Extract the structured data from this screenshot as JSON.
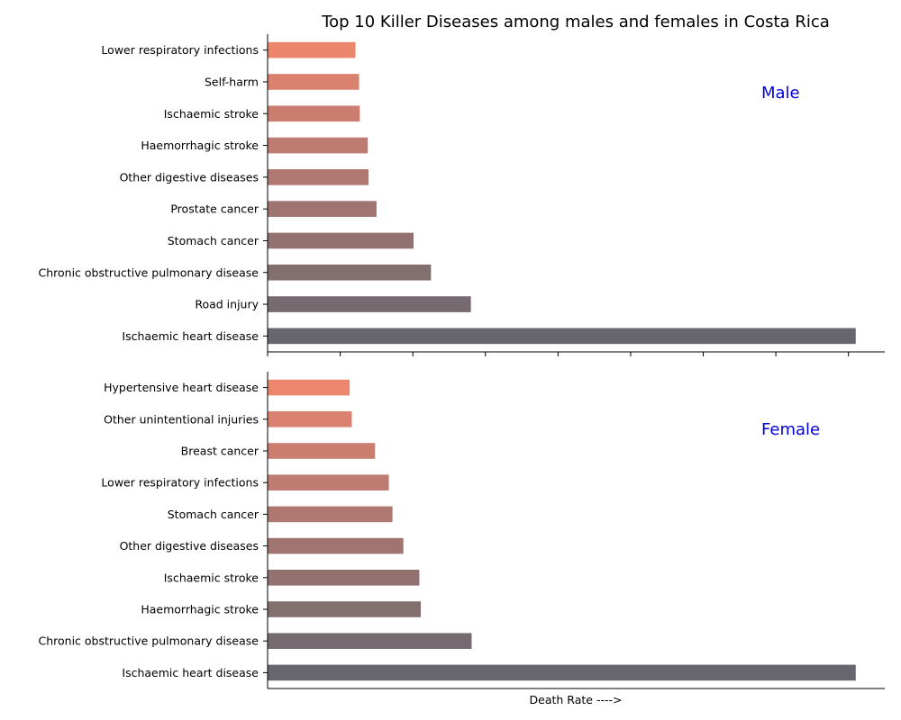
{
  "chart_data": {
    "title": "Top 10 Killer Diseases among males and females in Costa Rica",
    "xlabel": "Death Rate ---->",
    "type": "bar",
    "orientation": "horizontal",
    "shared_x": true,
    "xlim": [
      0,
      85
    ],
    "xticks_count": 9,
    "label_color": "#0000dd",
    "bar_colors": [
      "#67666e",
      "#756a6f",
      "#846f6f",
      "#927270",
      "#a07571",
      "#af7871",
      "#bd7b71",
      "#cb7e70",
      "#da826f",
      "#ec876d"
    ],
    "panels": [
      {
        "label": "Male",
        "categories": [
          "Ischaemic heart disease",
          "Road injury",
          "Chronic obstructive pulmonary disease",
          "Stomach cancer",
          "Prostate cancer",
          "Other digestive diseases",
          "Haemorrhagic stroke",
          "Ischaemic stroke",
          "Self-harm",
          "Lower respiratory infections"
        ],
        "values": [
          81,
          28,
          22.5,
          20.1,
          15,
          13.9,
          13.8,
          12.7,
          12.6,
          12.1
        ]
      },
      {
        "label": "Female",
        "categories": [
          "Ischaemic heart disease",
          "Chronic obstructive pulmonary disease",
          "Haemorrhagic stroke",
          "Ischaemic stroke",
          "Other digestive diseases",
          "Stomach cancer",
          "Lower respiratory infections",
          "Breast cancer",
          "Other unintentional injuries",
          "Hypertensive heart disease"
        ],
        "values": [
          81,
          28.1,
          21.1,
          20.9,
          18.7,
          17.2,
          16.7,
          14.8,
          11.6,
          11.3
        ]
      }
    ]
  }
}
